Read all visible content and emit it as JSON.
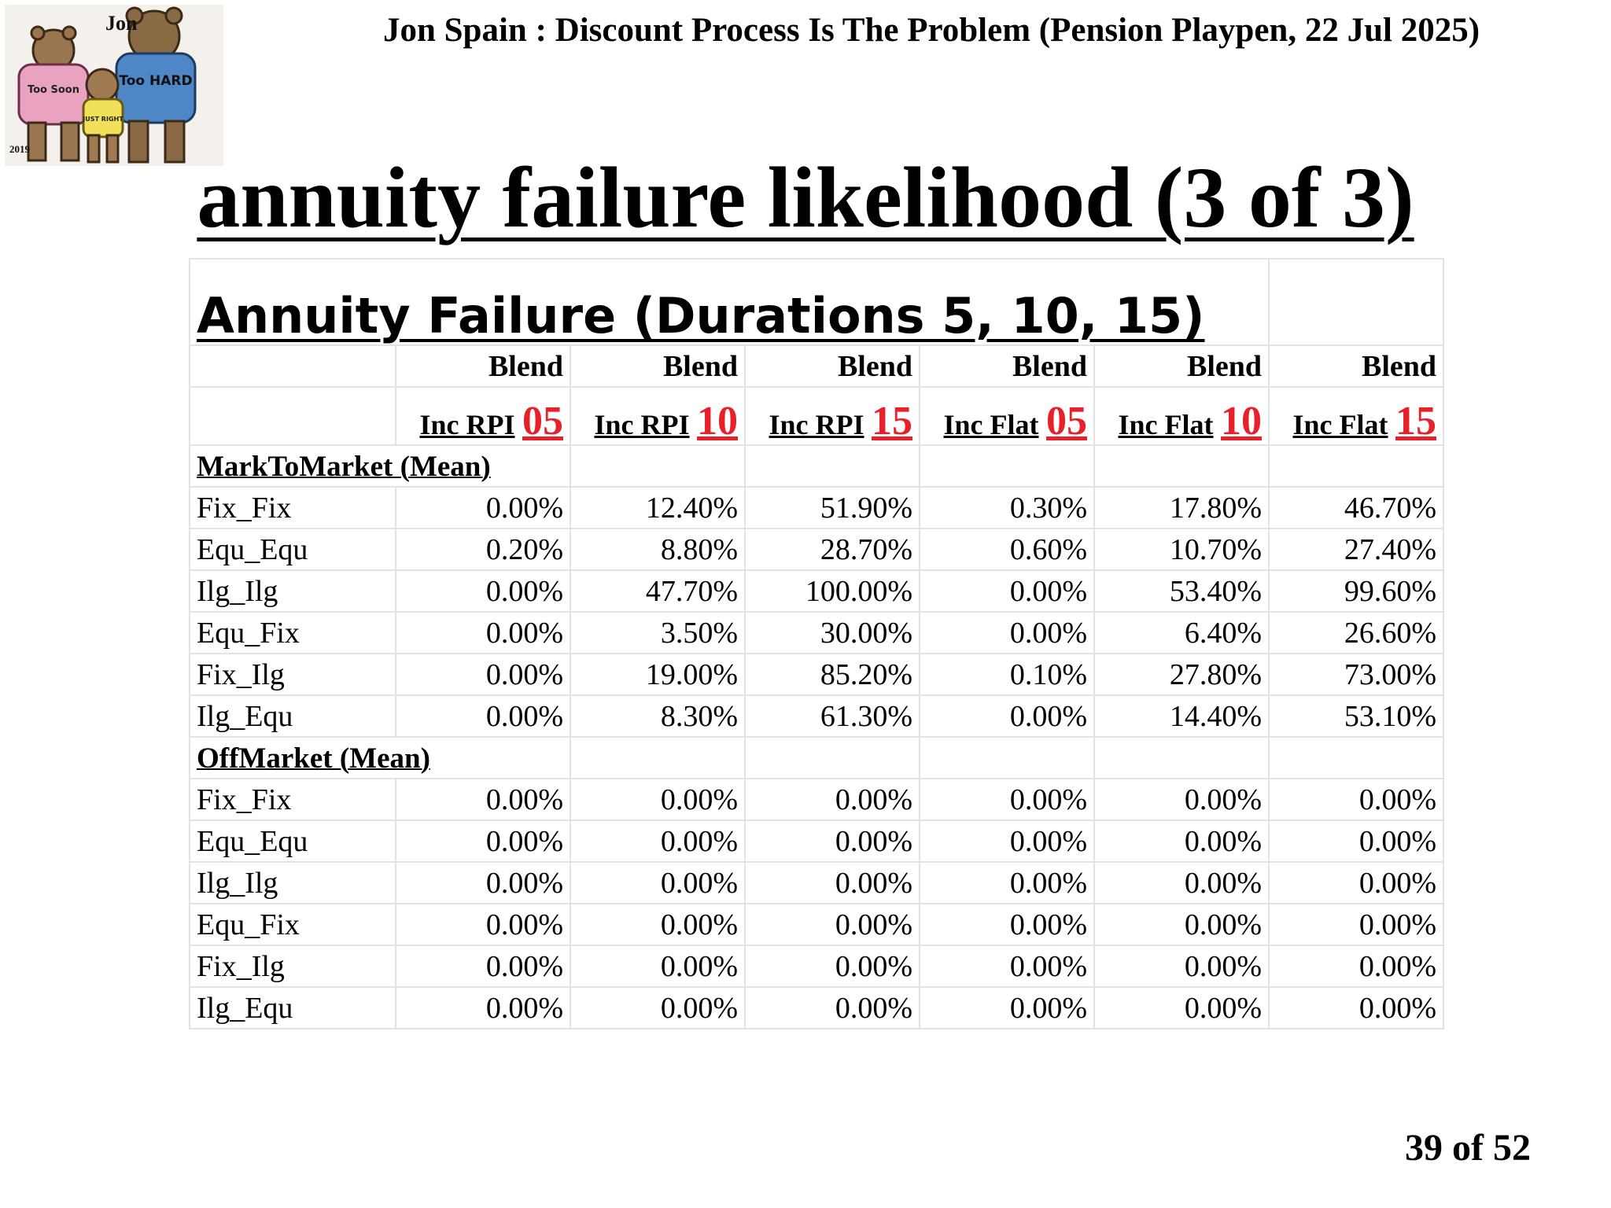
{
  "header": {
    "title": "Jon Spain : Discount Process Is The Problem (Pension Playpen, 22 Jul 2025)"
  },
  "logo": {
    "name_text": "Jon",
    "shirt_text_1": "Too Soon",
    "shirt_text_2": "Too HARD",
    "shirt_text_3": "JUST RIGHT",
    "year": "2019"
  },
  "slide": {
    "title": "annuity failure likelihood (3 of 3)",
    "page_indicator": "39 of 52"
  },
  "table": {
    "title": "Annuity Failure (Durations 5, 10, 15)",
    "blend_label": "Blend",
    "columns": [
      {
        "label": "Inc RPI",
        "num": "05"
      },
      {
        "label": "Inc RPI",
        "num": "10"
      },
      {
        "label": "Inc RPI",
        "num": "15"
      },
      {
        "label": "Inc Flat",
        "num": "05"
      },
      {
        "label": "Inc Flat",
        "num": "10"
      },
      {
        "label": "Inc Flat",
        "num": "15"
      }
    ],
    "sections": [
      {
        "label": "MarkToMarket (Mean)",
        "rows": [
          {
            "name": "Fix_Fix",
            "values": [
              "0.00%",
              "12.40%",
              "51.90%",
              "0.30%",
              "17.80%",
              "46.70%"
            ]
          },
          {
            "name": "Equ_Equ",
            "values": [
              "0.20%",
              "8.80%",
              "28.70%",
              "0.60%",
              "10.70%",
              "27.40%"
            ]
          },
          {
            "name": "Ilg_Ilg",
            "values": [
              "0.00%",
              "47.70%",
              "100.00%",
              "0.00%",
              "53.40%",
              "99.60%"
            ]
          },
          {
            "name": "Equ_Fix",
            "values": [
              "0.00%",
              "3.50%",
              "30.00%",
              "0.00%",
              "6.40%",
              "26.60%"
            ]
          },
          {
            "name": "Fix_Ilg",
            "values": [
              "0.00%",
              "19.00%",
              "85.20%",
              "0.10%",
              "27.80%",
              "73.00%"
            ]
          },
          {
            "name": "Ilg_Equ",
            "values": [
              "0.00%",
              "8.30%",
              "61.30%",
              "0.00%",
              "14.40%",
              "53.10%"
            ]
          }
        ]
      },
      {
        "label": "OffMarket (Mean)",
        "rows": [
          {
            "name": "Fix_Fix",
            "values": [
              "0.00%",
              "0.00%",
              "0.00%",
              "0.00%",
              "0.00%",
              "0.00%"
            ]
          },
          {
            "name": "Equ_Equ",
            "values": [
              "0.00%",
              "0.00%",
              "0.00%",
              "0.00%",
              "0.00%",
              "0.00%"
            ]
          },
          {
            "name": "Ilg_Ilg",
            "values": [
              "0.00%",
              "0.00%",
              "0.00%",
              "0.00%",
              "0.00%",
              "0.00%"
            ]
          },
          {
            "name": "Equ_Fix",
            "values": [
              "0.00%",
              "0.00%",
              "0.00%",
              "0.00%",
              "0.00%",
              "0.00%"
            ]
          },
          {
            "name": "Fix_Ilg",
            "values": [
              "0.00%",
              "0.00%",
              "0.00%",
              "0.00%",
              "0.00%",
              "0.00%"
            ]
          },
          {
            "name": "Ilg_Equ",
            "values": [
              "0.00%",
              "0.00%",
              "0.00%",
              "0.00%",
              "0.00%",
              "0.00%"
            ]
          }
        ]
      }
    ]
  },
  "colors": {
    "accent_red": "#e8202a",
    "grid": "#e2e2e2"
  }
}
